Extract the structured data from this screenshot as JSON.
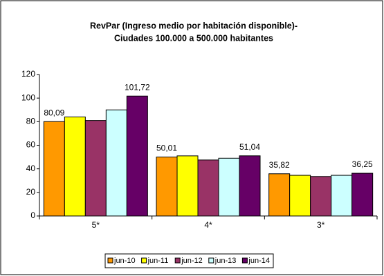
{
  "chart_data": {
    "type": "bar",
    "title": [
      "RevPar (Ingreso medio por habitación disponible)-",
      "Ciudades 100.000 a 500.000 habitantes"
    ],
    "categories": [
      "5*",
      "4*",
      "3*"
    ],
    "series": [
      {
        "name": "jun-10",
        "color": "#ff9900",
        "values": [
          80.09,
          50.01,
          35.82
        ],
        "value_labels": [
          "80,09",
          "50,01",
          "35,82"
        ]
      },
      {
        "name": "jun-11",
        "color": "#ffff00",
        "values": [
          84,
          51,
          34.5
        ]
      },
      {
        "name": "jun-12",
        "color": "#993366",
        "values": [
          81,
          47.5,
          33.5
        ]
      },
      {
        "name": "jun-13",
        "color": "#ccffff",
        "values": [
          90,
          49,
          34.5
        ]
      },
      {
        "name": "jun-14",
        "color": "#660066",
        "values": [
          101.72,
          51.04,
          36.25
        ],
        "value_labels": [
          "101,72",
          "51,04",
          "36,25"
        ]
      }
    ],
    "ylim": [
      0,
      120
    ],
    "yticks": [
      0,
      20,
      40,
      60,
      80,
      100,
      120
    ],
    "grid": false,
    "legend": "bottom"
  }
}
